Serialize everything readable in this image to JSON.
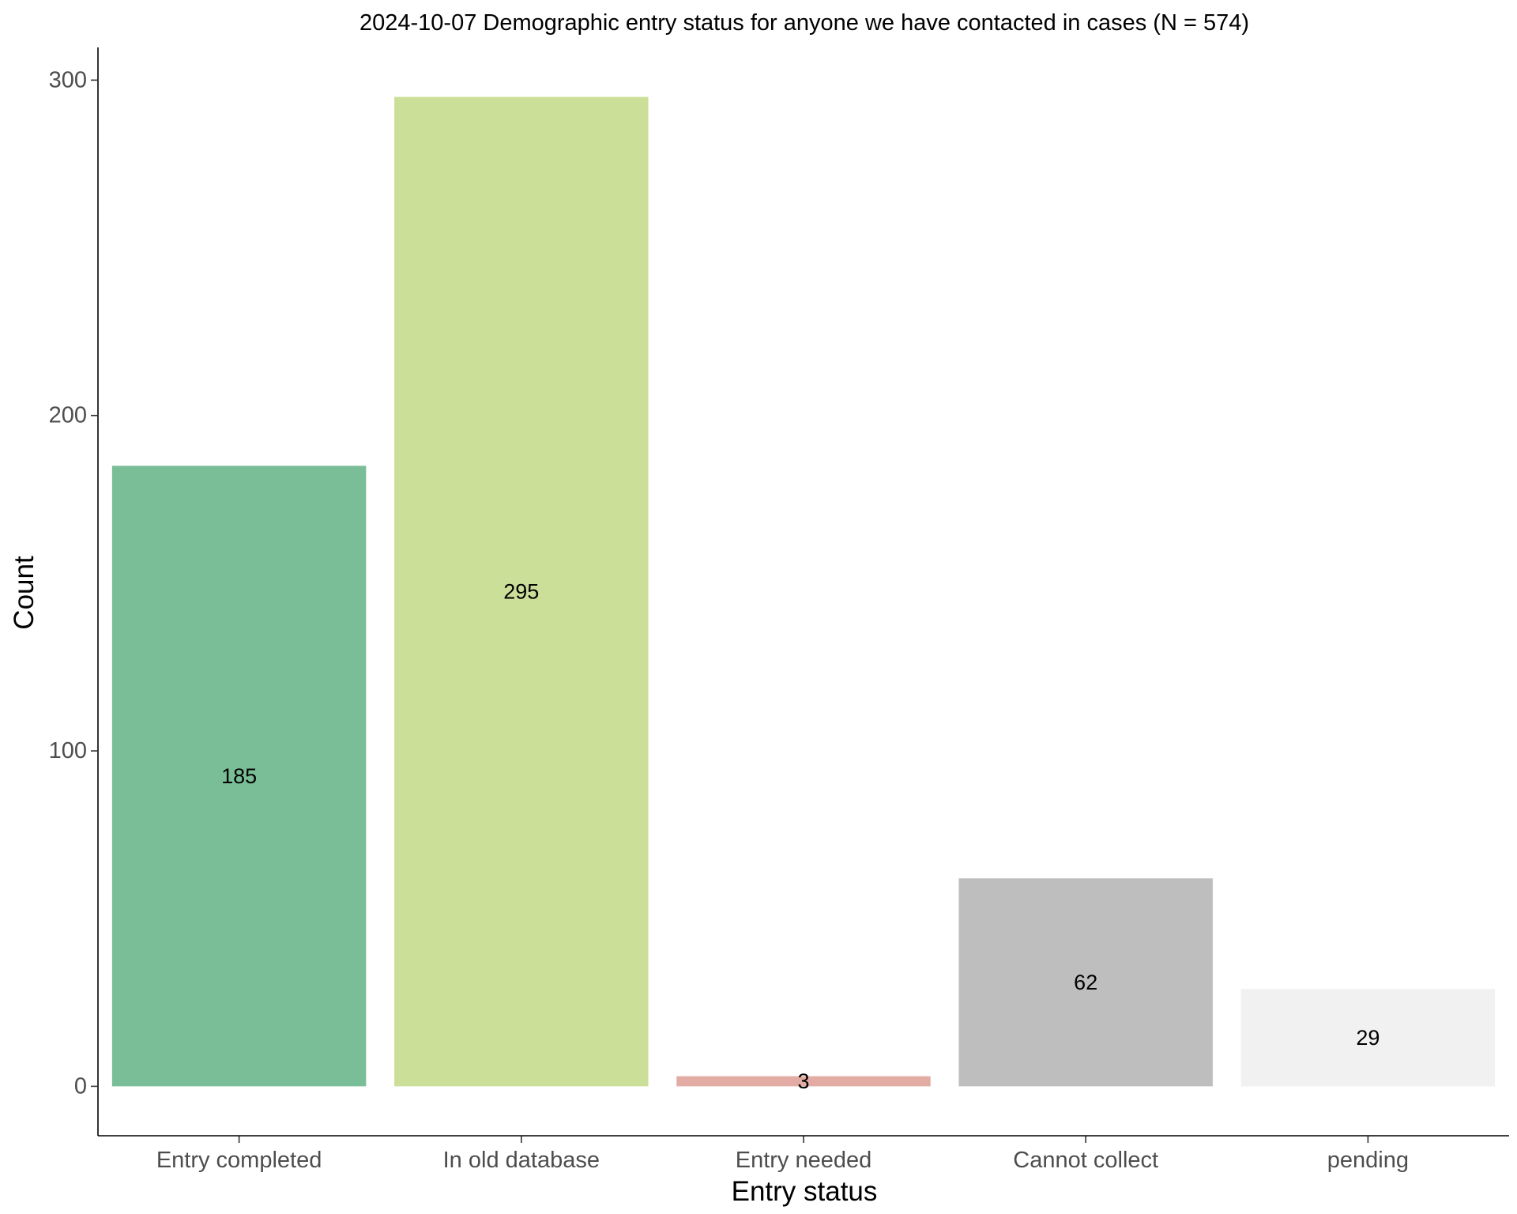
{
  "chart_data": {
    "type": "bar",
    "title": "2024-10-07 Demographic entry status for anyone we have contacted in cases (N = 574)",
    "xlabel": "Entry status",
    "ylabel": "Count",
    "categories": [
      "Entry completed",
      "In old database",
      "Entry needed",
      "Cannot collect",
      "pending"
    ],
    "values": [
      185,
      295,
      3,
      62,
      29
    ],
    "data_labels": [
      "185",
      "295",
      "3",
      "62",
      "29"
    ],
    "colors": [
      "#79be96",
      "#cbdf99",
      "#e2aca5",
      "#bebebe",
      "#f1f1f1"
    ],
    "yticks": [
      0,
      100,
      200,
      300
    ],
    "ytick_labels": [
      "0",
      "100",
      "200",
      "300"
    ],
    "ylim": [
      -14.75,
      309.75
    ],
    "grid": false,
    "legend": "none"
  }
}
